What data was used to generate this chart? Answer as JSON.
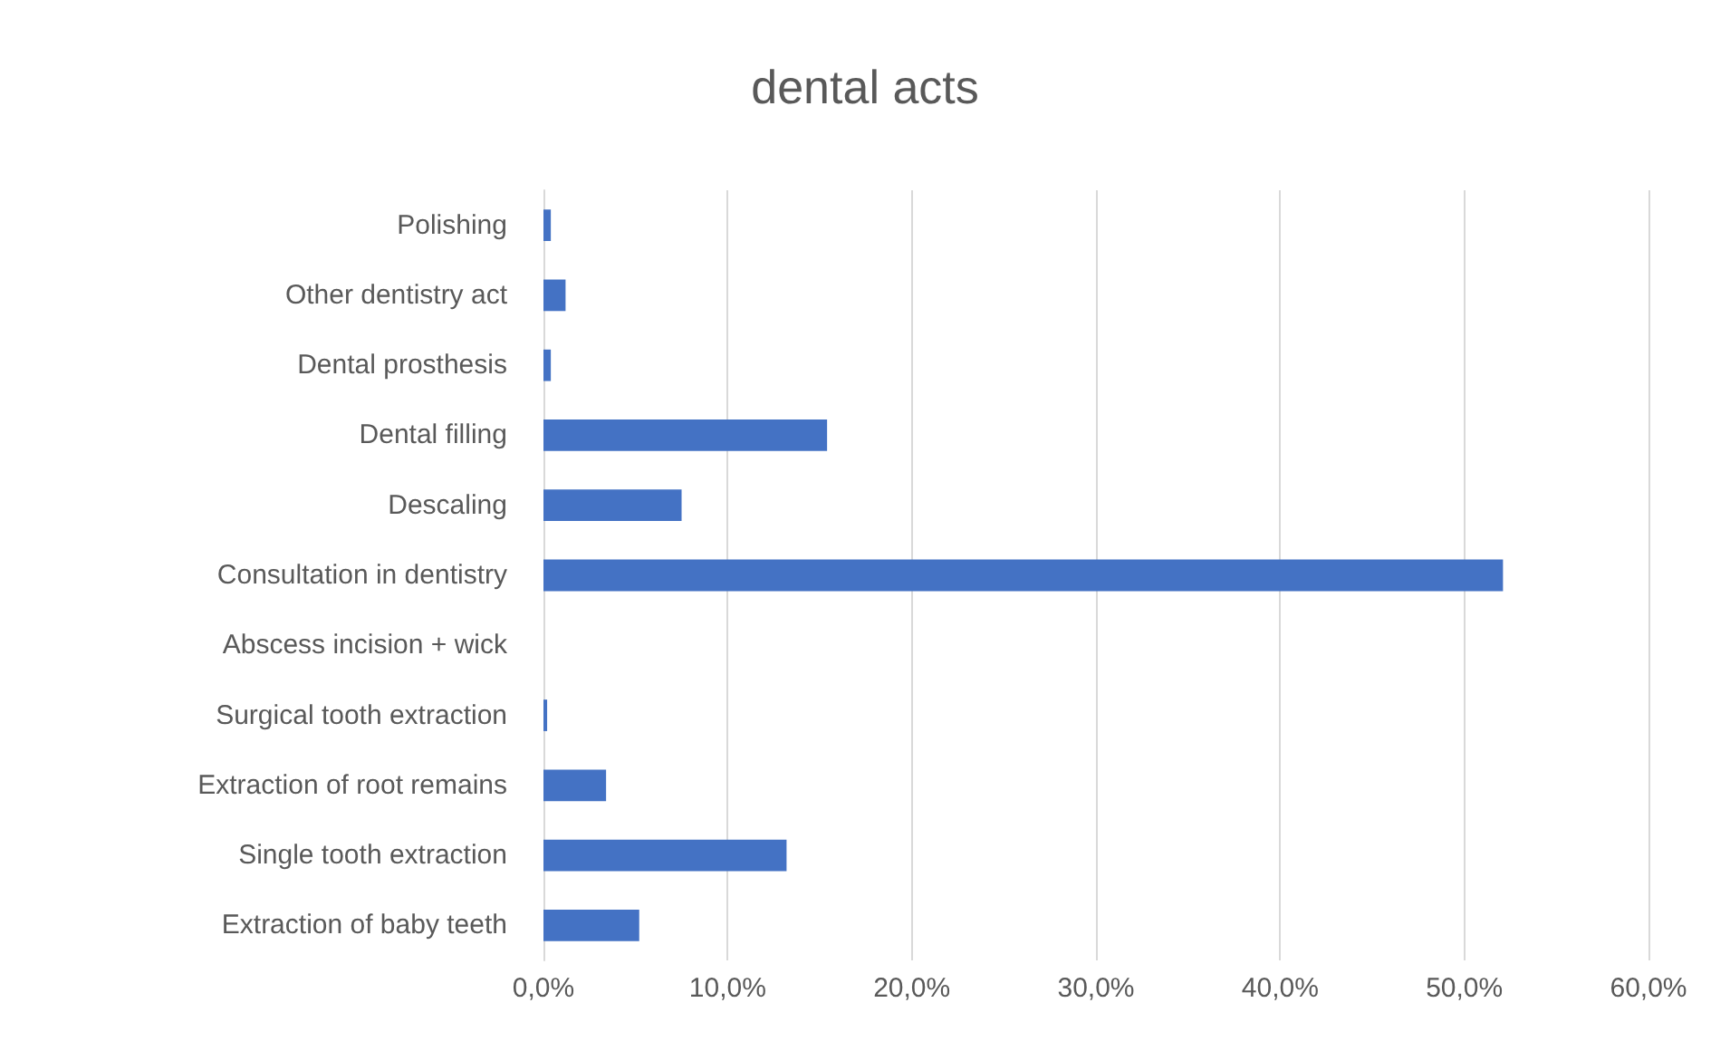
{
  "chart_data": {
    "type": "bar",
    "orientation": "horizontal",
    "title": "dental acts",
    "categories": [
      "Polishing",
      "Other dentistry act",
      "Dental prosthesis",
      "Dental filling",
      "Descaling",
      "Consultation in dentistry",
      "Abscess incision + wick",
      "Surgical tooth extraction",
      "Extraction of root remains",
      "Single tooth extraction",
      "Extraction of baby teeth"
    ],
    "values": [
      0.4,
      1.2,
      0.4,
      15.4,
      7.5,
      52.1,
      0,
      0.2,
      3.4,
      13.2,
      5.2
    ],
    "color": "#4472c4",
    "xlim": [
      0,
      60
    ],
    "xticks": [
      {
        "value": 0,
        "label": "0,0%"
      },
      {
        "value": 10,
        "label": "10,0%"
      },
      {
        "value": 20,
        "label": "20,0%"
      },
      {
        "value": 30,
        "label": "30,0%"
      },
      {
        "value": 40,
        "label": "40,0%"
      },
      {
        "value": 50,
        "label": "50,0%"
      },
      {
        "value": 60,
        "label": "60,0%"
      }
    ],
    "grid": "x"
  }
}
